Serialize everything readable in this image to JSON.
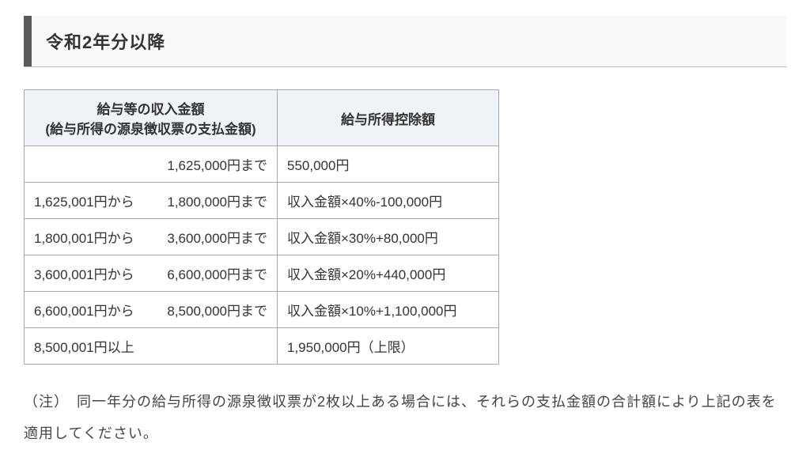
{
  "heading": "令和2年分以降",
  "table": {
    "header": {
      "col0_line1": "給与等の収入金額",
      "col0_line2": "(給与所得の源泉徴収票の支払金額)",
      "col1": "給与所得控除額"
    },
    "rows": [
      {
        "from": "",
        "to": "1,625,000円まで",
        "deduction": "550,000円"
      },
      {
        "from": "1,625,001円から",
        "to": "1,800,000円まで",
        "deduction": "収入金額×40%-100,000円"
      },
      {
        "from": "1,800,001円から",
        "to": "3,600,000円まで",
        "deduction": "収入金額×30%+80,000円"
      },
      {
        "from": "3,600,001円から",
        "to": "6,600,000円まで",
        "deduction": "収入金額×20%+440,000円"
      },
      {
        "from": "6,600,001円から",
        "to": "8,500,000円まで",
        "deduction": "収入金額×10%+1,100,000円"
      },
      {
        "from": "8,500,001円以上",
        "to": "",
        "deduction": "1,950,000円（上限）"
      }
    ]
  },
  "note": "（注）　同一年分の給与所得の源泉徴収票が2枚以上ある場合には、それらの支払金額の合計額により上記の表を適用してください。",
  "colors": {
    "heading_bar": "#5a5a5a",
    "heading_bg": "#f9f9f9",
    "th_bg": "#eef3f7",
    "border": "#aaaaaa",
    "text": "#333333",
    "note_text": "#444444"
  }
}
